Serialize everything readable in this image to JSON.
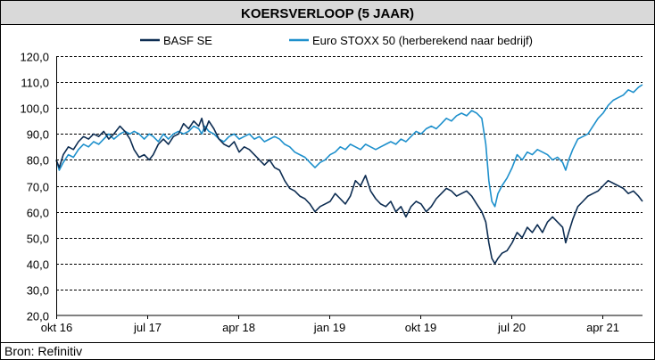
{
  "chart_data": {
    "type": "line",
    "title": "KOERSVERLOOP (5 JAAR)",
    "source": "Bron: Refinitiv",
    "ylim": [
      20,
      120
    ],
    "y_ticks": [
      "20,0",
      "30,0",
      "40,0",
      "50,0",
      "60,0",
      "70,0",
      "80,0",
      "90,0",
      "100,0",
      "110,0",
      "120,0"
    ],
    "x_range": [
      0,
      58
    ],
    "x_ticks": [
      {
        "label": "okt 16",
        "x": 0
      },
      {
        "label": "jul 17",
        "x": 9
      },
      {
        "label": "apr 18",
        "x": 18
      },
      {
        "label": "jan 19",
        "x": 27
      },
      {
        "label": "okt 19",
        "x": 36
      },
      {
        "label": "jul 20",
        "x": 45
      },
      {
        "label": "apr 21",
        "x": 54
      }
    ],
    "grid": "horizontal dashed",
    "legend_position": "top",
    "series": [
      {
        "name": "BASF SE",
        "color": "#0d2d52",
        "points": [
          [
            0,
            80
          ],
          [
            0.3,
            77
          ],
          [
            0.7,
            82
          ],
          [
            1.2,
            85
          ],
          [
            1.7,
            84
          ],
          [
            2.2,
            87
          ],
          [
            2.7,
            89
          ],
          [
            3.2,
            88
          ],
          [
            3.7,
            90
          ],
          [
            4.2,
            89
          ],
          [
            4.7,
            91
          ],
          [
            5.2,
            88
          ],
          [
            5.7,
            90
          ],
          [
            6.3,
            93
          ],
          [
            6.8,
            91
          ],
          [
            7.3,
            88
          ],
          [
            7.7,
            84
          ],
          [
            8.2,
            81
          ],
          [
            8.7,
            82
          ],
          [
            9.2,
            80
          ],
          [
            9.6,
            82
          ],
          [
            10.1,
            86
          ],
          [
            10.6,
            88
          ],
          [
            11.1,
            86
          ],
          [
            11.6,
            89
          ],
          [
            12.1,
            90
          ],
          [
            12.6,
            94
          ],
          [
            13.1,
            92
          ],
          [
            13.6,
            95
          ],
          [
            14.1,
            93
          ],
          [
            14.4,
            96
          ],
          [
            14.7,
            91
          ],
          [
            15.1,
            95
          ],
          [
            15.6,
            92
          ],
          [
            16.1,
            88
          ],
          [
            16.6,
            86
          ],
          [
            17.1,
            85
          ],
          [
            17.6,
            87
          ],
          [
            18.1,
            83
          ],
          [
            18.6,
            85
          ],
          [
            19.1,
            84
          ],
          [
            19.6,
            82
          ],
          [
            20.1,
            80
          ],
          [
            20.6,
            78
          ],
          [
            21.1,
            80
          ],
          [
            21.6,
            77
          ],
          [
            22.1,
            76
          ],
          [
            22.6,
            72
          ],
          [
            23.1,
            69
          ],
          [
            23.6,
            68
          ],
          [
            24.1,
            66
          ],
          [
            24.6,
            65
          ],
          [
            25.1,
            63
          ],
          [
            25.6,
            60
          ],
          [
            26.1,
            62
          ],
          [
            26.6,
            63
          ],
          [
            27.1,
            64
          ],
          [
            27.6,
            67
          ],
          [
            28.1,
            65
          ],
          [
            28.6,
            63
          ],
          [
            29.1,
            66
          ],
          [
            29.6,
            72
          ],
          [
            30.1,
            70
          ],
          [
            30.6,
            74
          ],
          [
            31.1,
            68
          ],
          [
            31.6,
            65
          ],
          [
            32.1,
            63
          ],
          [
            32.6,
            62
          ],
          [
            33.1,
            64
          ],
          [
            33.6,
            60
          ],
          [
            34.1,
            62
          ],
          [
            34.6,
            58
          ],
          [
            35.1,
            62
          ],
          [
            35.6,
            64
          ],
          [
            36.1,
            63
          ],
          [
            36.6,
            60
          ],
          [
            37.1,
            62
          ],
          [
            37.6,
            65
          ],
          [
            38.1,
            67
          ],
          [
            38.6,
            69
          ],
          [
            39.1,
            68
          ],
          [
            39.6,
            66
          ],
          [
            40.1,
            67
          ],
          [
            40.6,
            68
          ],
          [
            41.1,
            66
          ],
          [
            41.6,
            63
          ],
          [
            42.1,
            60
          ],
          [
            42.5,
            56
          ],
          [
            42.8,
            48
          ],
          [
            43.1,
            42
          ],
          [
            43.4,
            40
          ],
          [
            43.7,
            42
          ],
          [
            44.1,
            44
          ],
          [
            44.6,
            45
          ],
          [
            45.1,
            48
          ],
          [
            45.6,
            52
          ],
          [
            46.1,
            50
          ],
          [
            46.6,
            54
          ],
          [
            47.1,
            52
          ],
          [
            47.6,
            55
          ],
          [
            48.1,
            52
          ],
          [
            48.6,
            56
          ],
          [
            49.1,
            58
          ],
          [
            49.6,
            56
          ],
          [
            50.1,
            54
          ],
          [
            50.4,
            48
          ],
          [
            50.7,
            52
          ],
          [
            51.1,
            57
          ],
          [
            51.6,
            62
          ],
          [
            52.1,
            64
          ],
          [
            52.6,
            66
          ],
          [
            53.1,
            67
          ],
          [
            53.6,
            68
          ],
          [
            54.1,
            70
          ],
          [
            54.6,
            72
          ],
          [
            55.1,
            71
          ],
          [
            55.6,
            70
          ],
          [
            56.1,
            69
          ],
          [
            56.6,
            67
          ],
          [
            57.1,
            68
          ],
          [
            57.6,
            66
          ],
          [
            58,
            64
          ]
        ]
      },
      {
        "name": "Euro STOXX 50 (herberekend naar bedrijf)",
        "color": "#1e90cc",
        "points": [
          [
            0,
            80
          ],
          [
            0.3,
            76
          ],
          [
            0.7,
            79
          ],
          [
            1.2,
            82
          ],
          [
            1.7,
            81
          ],
          [
            2.2,
            84
          ],
          [
            2.7,
            86
          ],
          [
            3.2,
            85
          ],
          [
            3.7,
            87
          ],
          [
            4.2,
            86
          ],
          [
            4.7,
            88
          ],
          [
            5.2,
            90
          ],
          [
            5.7,
            88
          ],
          [
            6.3,
            90
          ],
          [
            6.8,
            91
          ],
          [
            7.3,
            90
          ],
          [
            7.7,
            91
          ],
          [
            8.2,
            90
          ],
          [
            8.7,
            88
          ],
          [
            9.2,
            90
          ],
          [
            9.6,
            89
          ],
          [
            10.1,
            87
          ],
          [
            10.6,
            90
          ],
          [
            11.1,
            88
          ],
          [
            11.6,
            90
          ],
          [
            12.1,
            91
          ],
          [
            12.6,
            90
          ],
          [
            13.1,
            91
          ],
          [
            13.6,
            93
          ],
          [
            14.1,
            92
          ],
          [
            14.4,
            90
          ],
          [
            14.7,
            93
          ],
          [
            15.1,
            91
          ],
          [
            15.6,
            90
          ],
          [
            16.1,
            88
          ],
          [
            16.6,
            87
          ],
          [
            17.1,
            89
          ],
          [
            17.6,
            90
          ],
          [
            18.1,
            88
          ],
          [
            18.6,
            89
          ],
          [
            19.1,
            90
          ],
          [
            19.6,
            88
          ],
          [
            20.1,
            89
          ],
          [
            20.6,
            87
          ],
          [
            21.1,
            88
          ],
          [
            21.6,
            89
          ],
          [
            22.1,
            88
          ],
          [
            22.6,
            86
          ],
          [
            23.1,
            85
          ],
          [
            23.6,
            83
          ],
          [
            24.1,
            82
          ],
          [
            24.6,
            81
          ],
          [
            25.1,
            79
          ],
          [
            25.6,
            77
          ],
          [
            26.1,
            79
          ],
          [
            26.6,
            80
          ],
          [
            27.1,
            82
          ],
          [
            27.6,
            83
          ],
          [
            28.1,
            85
          ],
          [
            28.6,
            84
          ],
          [
            29.1,
            86
          ],
          [
            29.6,
            85
          ],
          [
            30.1,
            84
          ],
          [
            30.6,
            86
          ],
          [
            31.1,
            85
          ],
          [
            31.6,
            84
          ],
          [
            32.1,
            85
          ],
          [
            32.6,
            86
          ],
          [
            33.1,
            87
          ],
          [
            33.6,
            86
          ],
          [
            34.1,
            88
          ],
          [
            34.6,
            87
          ],
          [
            35.1,
            89
          ],
          [
            35.6,
            91
          ],
          [
            36.1,
            90
          ],
          [
            36.6,
            92
          ],
          [
            37.1,
            93
          ],
          [
            37.6,
            92
          ],
          [
            38.1,
            94
          ],
          [
            38.6,
            96
          ],
          [
            39.1,
            95
          ],
          [
            39.6,
            97
          ],
          [
            40.1,
            98
          ],
          [
            40.6,
            97
          ],
          [
            41.1,
            99
          ],
          [
            41.6,
            98
          ],
          [
            42.1,
            96
          ],
          [
            42.5,
            86
          ],
          [
            42.8,
            72
          ],
          [
            43.1,
            64
          ],
          [
            43.4,
            62
          ],
          [
            43.7,
            67
          ],
          [
            44.1,
            70
          ],
          [
            44.6,
            73
          ],
          [
            45.1,
            77
          ],
          [
            45.6,
            82
          ],
          [
            46.1,
            80
          ],
          [
            46.6,
            83
          ],
          [
            47.1,
            82
          ],
          [
            47.6,
            84
          ],
          [
            48.1,
            83
          ],
          [
            48.6,
            82
          ],
          [
            49.1,
            80
          ],
          [
            49.6,
            81
          ],
          [
            50.1,
            79
          ],
          [
            50.4,
            76
          ],
          [
            50.7,
            80
          ],
          [
            51.1,
            84
          ],
          [
            51.6,
            88
          ],
          [
            52.1,
            89
          ],
          [
            52.6,
            90
          ],
          [
            53.1,
            93
          ],
          [
            53.6,
            96
          ],
          [
            54.1,
            98
          ],
          [
            54.6,
            101
          ],
          [
            55.1,
            103
          ],
          [
            55.6,
            104
          ],
          [
            56.1,
            105
          ],
          [
            56.6,
            107
          ],
          [
            57.1,
            106
          ],
          [
            57.6,
            108
          ],
          [
            58,
            109
          ]
        ]
      }
    ]
  }
}
